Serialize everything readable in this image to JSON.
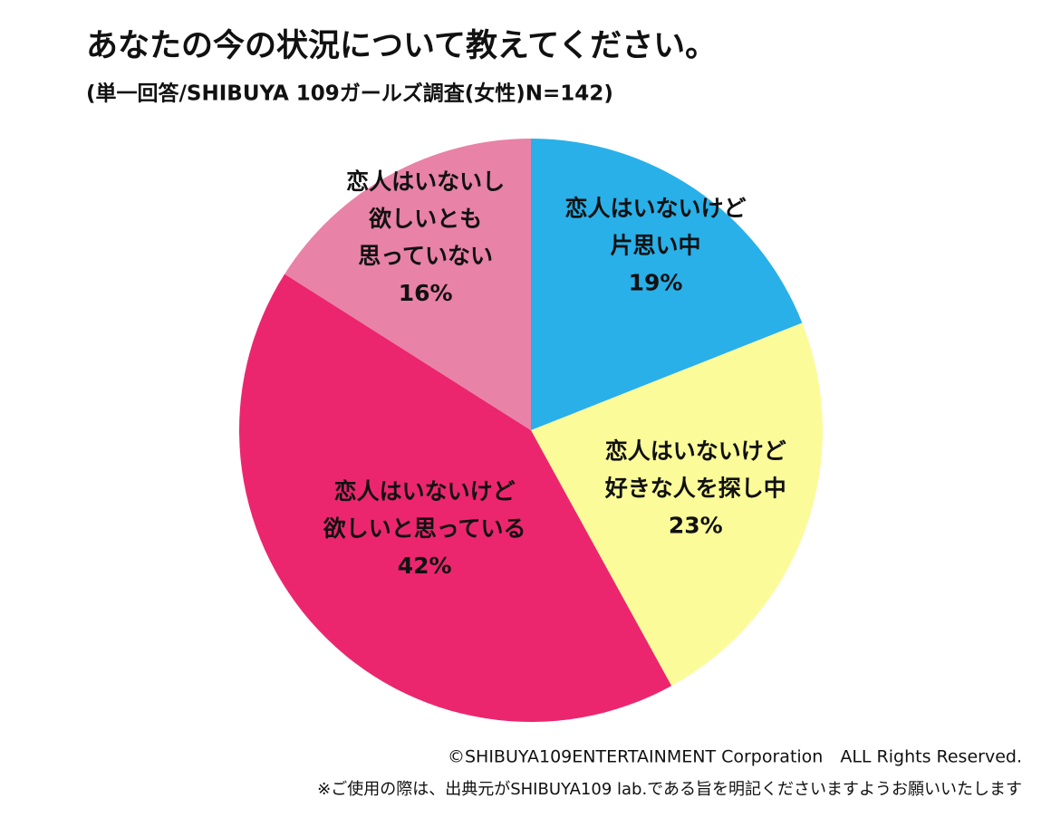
{
  "chart_data": {
    "type": "pie",
    "title": "あなたの今の状況について教えてください。",
    "subtitle": "(単一回答/SHIBUYA 109ガールズ調査(女性)N=142)",
    "categories": [
      [
        "恋人はいないけど",
        "片思い中"
      ],
      [
        "恋人はいないけど",
        "好きな人を探し中"
      ],
      [
        "恋人はいないけど",
        "欲しいと思っている"
      ],
      [
        "恋人はいないし",
        "欲しいとも",
        "思っていない"
      ]
    ],
    "values": [
      19,
      23,
      42,
      16
    ],
    "value_labels": [
      "19%",
      "23%",
      "42%",
      "16%"
    ],
    "colors": [
      "#29b0e8",
      "#fbfb9a",
      "#ec266e",
      "#e882a6"
    ],
    "copyright": "©SHIBUYA109ENTERTAINMENT Corporation　ALL Rights Reserved.",
    "note": "※ご使用の際は、出典元がSHIBUYA109 lab.である旨を明記くださいますようお願いいたします"
  }
}
